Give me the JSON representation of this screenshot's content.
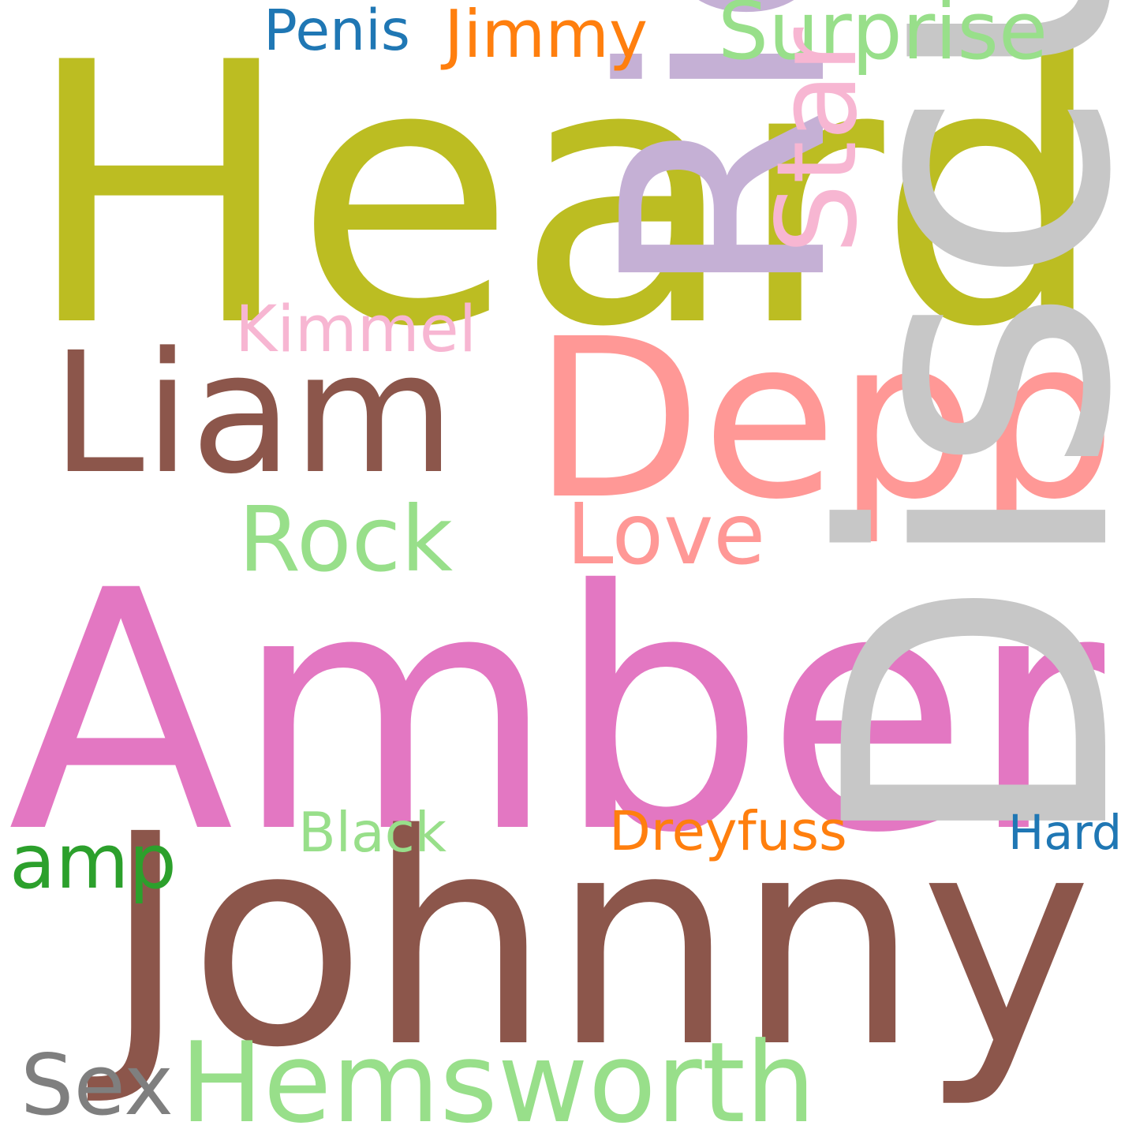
{
  "words": [
    {
      "id": "heard",
      "text": "Heard",
      "color": "#bcbd22",
      "orientation": "horizontal"
    },
    {
      "id": "amber",
      "text": "Amber",
      "color": "#e377c2",
      "orientation": "horizontal"
    },
    {
      "id": "johnny",
      "text": "Johnny",
      "color": "#8c564b",
      "orientation": "horizontal"
    },
    {
      "id": "depp",
      "text": "Depp",
      "color": "#ff9896",
      "orientation": "horizontal"
    },
    {
      "id": "liam",
      "text": "Liam",
      "color": "#8c564b",
      "orientation": "horizontal"
    },
    {
      "id": "hemsworth",
      "text": "Hemsworth",
      "color": "#98df8a",
      "orientation": "horizontal"
    },
    {
      "id": "rock",
      "text": "Rock",
      "color": "#98df8a",
      "orientation": "horizontal"
    },
    {
      "id": "love",
      "text": "Love",
      "color": "#ff9896",
      "orientation": "horizontal"
    },
    {
      "id": "discusses",
      "text": "Discusses",
      "color": "#c7c7c7",
      "orientation": "vertical"
    },
    {
      "id": "richard",
      "text": "Richard",
      "color": "#c5b0d5",
      "orientation": "vertical"
    },
    {
      "id": "surprise",
      "text": "Surprise",
      "color": "#98df8a",
      "orientation": "horizontal"
    },
    {
      "id": "jimmy",
      "text": "Jimmy",
      "color": "#ff7f0e",
      "orientation": "horizontal"
    },
    {
      "id": "kimmel",
      "text": "Kimmel",
      "color": "#f7b6d2",
      "orientation": "horizontal"
    },
    {
      "id": "amp",
      "text": "amp",
      "color": "#2ca02c",
      "orientation": "horizontal"
    },
    {
      "id": "sex",
      "text": "Sex",
      "color": "#7f7f7f",
      "orientation": "horizontal"
    },
    {
      "id": "dreyfuss",
      "text": "Dreyfuss",
      "color": "#ff7f0e",
      "orientation": "horizontal"
    },
    {
      "id": "black",
      "text": "Black",
      "color": "#98df8a",
      "orientation": "horizontal"
    },
    {
      "id": "hard",
      "text": "Hard",
      "color": "#1f77b4",
      "orientation": "horizontal"
    },
    {
      "id": "penis",
      "text": "Penis",
      "color": "#1f77b4",
      "orientation": "horizontal"
    },
    {
      "id": "star",
      "text": "Star",
      "color": "#f7b6d2",
      "orientation": "vertical"
    }
  ]
}
